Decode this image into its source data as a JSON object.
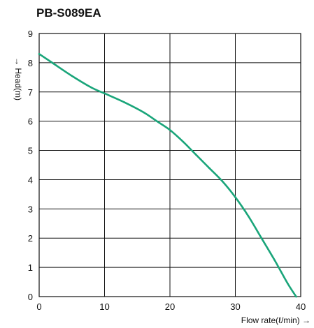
{
  "chart_data": {
    "type": "line",
    "title": "PB-S089EA",
    "xlabel": "Flow rate(ℓ/min) →",
    "ylabel": "→ Head(m)",
    "xlim": [
      0,
      40
    ],
    "ylim": [
      0,
      9
    ],
    "x_ticks": [
      0,
      10,
      20,
      30,
      40
    ],
    "y_ticks": [
      0,
      1,
      2,
      3,
      4,
      5,
      6,
      7,
      8,
      9
    ],
    "grid": true,
    "line_color": "#1aa57a",
    "series": [
      {
        "x": [
          0,
          2,
          5,
          8,
          10,
          13,
          16,
          18,
          20,
          22,
          24,
          26,
          28,
          30,
          32,
          34,
          36,
          38,
          39.3
        ],
        "y": [
          8.3,
          8.0,
          7.55,
          7.15,
          6.95,
          6.65,
          6.3,
          6.0,
          5.7,
          5.3,
          4.85,
          4.4,
          3.95,
          3.4,
          2.75,
          2.0,
          1.25,
          0.45,
          0
        ]
      }
    ]
  }
}
